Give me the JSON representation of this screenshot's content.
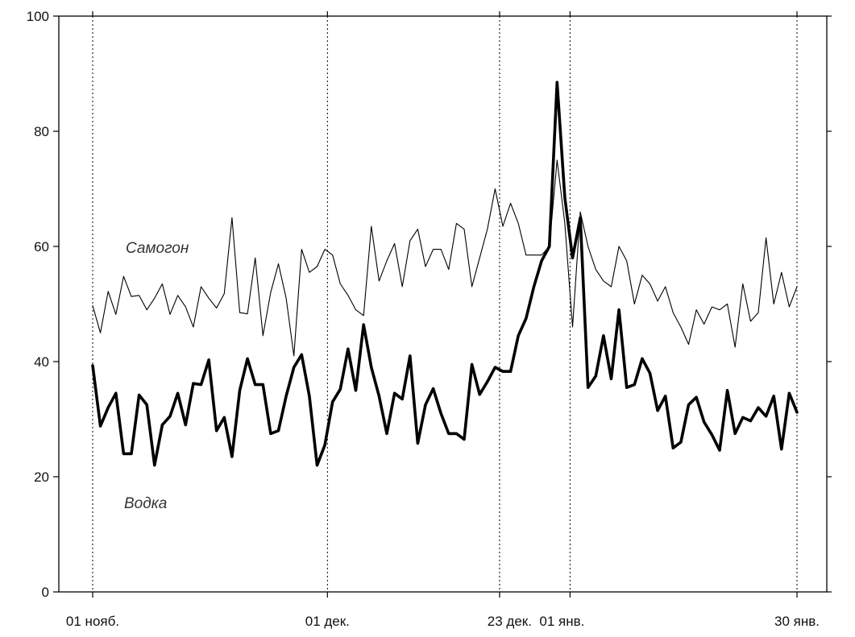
{
  "chart_data": {
    "type": "line",
    "title": "",
    "xlabel": "",
    "ylabel": "",
    "ylim": [
      0,
      100
    ],
    "xlim": [
      "2000-11-01",
      "2001-01-30"
    ],
    "grid": "vertical dotted lines at x tick positions",
    "y_ticks": [
      "0",
      "20",
      "40",
      "60",
      "80",
      "100"
    ],
    "x_ticks": [
      {
        "date": "2000-11-01",
        "label": "01 нояб."
      },
      {
        "date": "2000-12-01",
        "label": "01 дек."
      },
      {
        "date": "2000-12-23",
        "label": "23 дек."
      },
      {
        "date": "2001-01-01",
        "label": "01 янв."
      },
      {
        "date": "2001-01-30",
        "label": "30 янв."
      }
    ],
    "annotations": [
      {
        "text": "Самогон",
        "series": "Самогон"
      },
      {
        "text": "Водка",
        "series": "Водка"
      }
    ],
    "series": [
      {
        "name": "Самогон",
        "color": "#000000",
        "values": [
          49.7,
          45.0,
          52.2,
          48.2,
          54.8,
          51.3,
          51.5,
          49.0,
          51.0,
          53.5,
          48.2,
          51.5,
          49.5,
          46.0,
          53.0,
          51.0,
          49.3,
          51.8,
          65.0,
          48.5,
          48.3,
          58.0,
          44.5,
          52.0,
          57.0,
          51.0,
          41.0,
          59.5,
          55.5,
          56.5,
          59.5,
          58.5,
          53.5,
          51.5,
          49.0,
          48.0,
          63.5,
          54.0,
          57.5,
          60.5,
          53.0,
          61.0,
          63.0,
          56.5,
          59.5,
          59.5,
          56.0,
          64.0,
          63.0,
          53.0,
          58.0,
          63.0,
          70.0,
          63.5,
          67.5,
          64.0,
          58.5,
          58.5,
          58.5,
          60.0,
          75.0,
          64.0,
          46.0,
          66.0,
          60.0,
          56.0,
          54.0,
          53.0,
          60.0,
          57.5,
          50.0,
          55.0,
          53.5,
          50.5,
          53.0,
          48.5,
          46.0,
          43.0,
          49.0,
          46.5,
          49.5,
          49.0,
          50.0,
          42.5,
          53.5,
          47.0,
          48.5,
          61.5,
          50.0,
          55.5,
          49.5,
          53.0
        ]
      },
      {
        "name": "Водка",
        "color": "#000000",
        "values": [
          39.3,
          28.8,
          32.0,
          34.5,
          24.0,
          24.0,
          34.2,
          32.5,
          22.0,
          29.0,
          30.5,
          34.5,
          29.0,
          36.2,
          36.0,
          40.3,
          28.0,
          30.3,
          23.5,
          35.0,
          40.5,
          36.0,
          36.0,
          27.5,
          28.0,
          34.0,
          39.0,
          41.2,
          34.0,
          22.0,
          25.5,
          33.0,
          35.2,
          42.2,
          35.0,
          46.4,
          39.0,
          34.0,
          27.5,
          34.5,
          33.5,
          41.0,
          25.8,
          32.5,
          35.3,
          31.0,
          27.5,
          27.5,
          26.5,
          39.5,
          34.3,
          36.5,
          39.0,
          38.3,
          38.3,
          44.5,
          47.5,
          53.0,
          57.5,
          60.0,
          88.5,
          68.5,
          58.0,
          65.0,
          35.5,
          37.5,
          44.5,
          37.0,
          49.0,
          35.5,
          36.0,
          40.5,
          38.0,
          31.5,
          34.0,
          25.0,
          26.0,
          32.5,
          33.8,
          29.5,
          27.3,
          24.6,
          35.0,
          27.5,
          30.3,
          29.7,
          32.0,
          30.5,
          34.0,
          24.8,
          34.5,
          31.2
        ]
      }
    ]
  }
}
